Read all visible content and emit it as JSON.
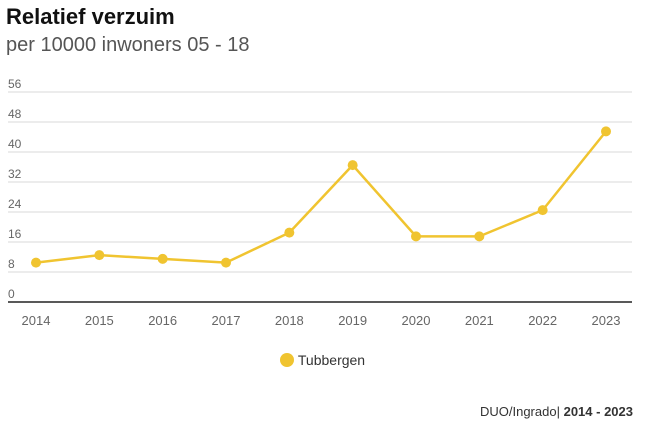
{
  "header": {
    "title": "Relatief verzuim",
    "subtitle": "per 10000 inwoners 05 - 18"
  },
  "footer": {
    "source": "DUO/Ingrado",
    "separator": "|",
    "period": "2014 - 2023"
  },
  "colors": {
    "series": "#f0c430",
    "grid": "#d9d9d9",
    "axis": "#222222",
    "tick_text": "#666666"
  },
  "chart_data": {
    "type": "line",
    "title": "Relatief verzuim",
    "subtitle": "per 10000 inwoners 05 - 18",
    "categories": [
      "2014",
      "2015",
      "2016",
      "2017",
      "2018",
      "2019",
      "2020",
      "2021",
      "2022",
      "2023"
    ],
    "series": [
      {
        "name": "Tubbergen",
        "values": [
          10.5,
          12.5,
          11.5,
          10.5,
          18.5,
          36.5,
          17.5,
          17.5,
          24.5,
          45.5
        ]
      }
    ],
    "yticks": [
      0,
      8,
      16,
      24,
      32,
      40,
      48,
      56
    ],
    "ylim": [
      0,
      56
    ],
    "grid": true,
    "legend_position": "bottom-center"
  }
}
